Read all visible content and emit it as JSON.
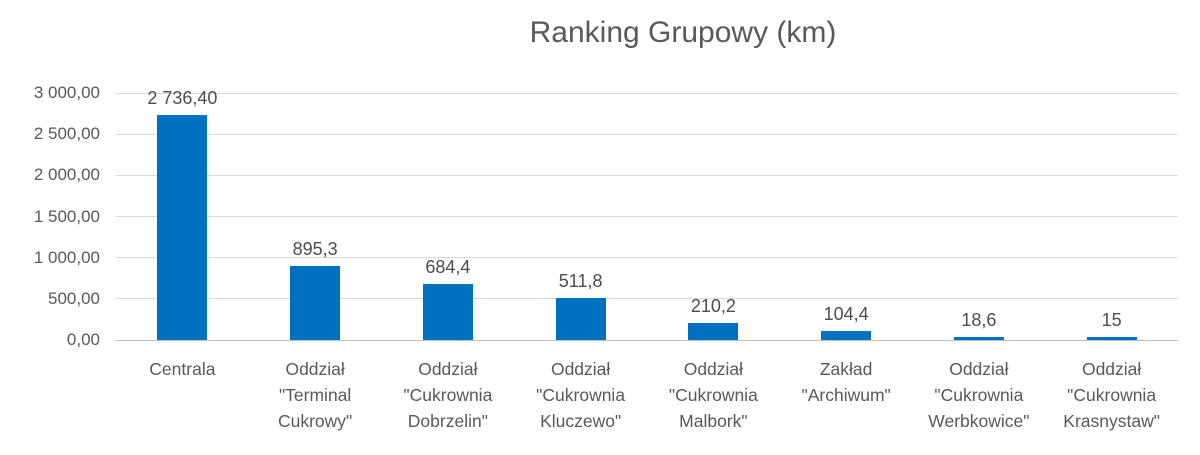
{
  "title": "Ranking Grupowy (km)",
  "colors": {
    "bar": "#0070C0",
    "grid": "#D9D9D9",
    "axis": "#BFBFBF",
    "title_text": "#595959",
    "tick_text": "#595959",
    "value_text": "#4D4D4D"
  },
  "chart_data": {
    "type": "bar",
    "title": "Ranking Grupowy (km)",
    "xlabel": "",
    "ylabel": "",
    "ylim": [
      0,
      3000
    ],
    "ytick_step": 500,
    "ytick_labels": [
      "0,00",
      "500,00",
      "1 000,00",
      "1 500,00",
      "2 000,00",
      "2 500,00",
      "3 000,00"
    ],
    "grid": true,
    "legend": "none",
    "categories": [
      "Centrala",
      "Oddział \"Terminal Cukrowy\"",
      "Oddział \"Cukrownia Dobrzelin\"",
      "Oddział \"Cukrownia Kluczewo\"",
      "Oddział \"Cukrownia Malbork\"",
      "Zakład \"Archiwum\"",
      "Oddział \"Cukrownia Werbkowice\"",
      "Oddział \"Cukrownia Krasnystaw\""
    ],
    "category_display_lines": [
      "Centrala",
      "Oddział\n\"Terminal\nCukrowy\"",
      "Oddział\n\"Cukrownia\nDobrzelin\"",
      "Oddział\n\"Cukrownia\nKluczewo\"",
      "Oddział\n\"Cukrownia\nMalbork\"",
      "Zakład\n\"Archiwum\"",
      "Oddział\n\"Cukrownia\nWerbkowice\"",
      "Oddział\n\"Cukrownia\nKrasnystaw\""
    ],
    "values": [
      2736.4,
      895.3,
      684.4,
      511.8,
      210.2,
      104.4,
      18.6,
      15
    ],
    "value_labels": [
      "2 736,40",
      "895,3",
      "684,4",
      "511,8",
      "210,2",
      "104,4",
      "18,6",
      "15"
    ]
  }
}
